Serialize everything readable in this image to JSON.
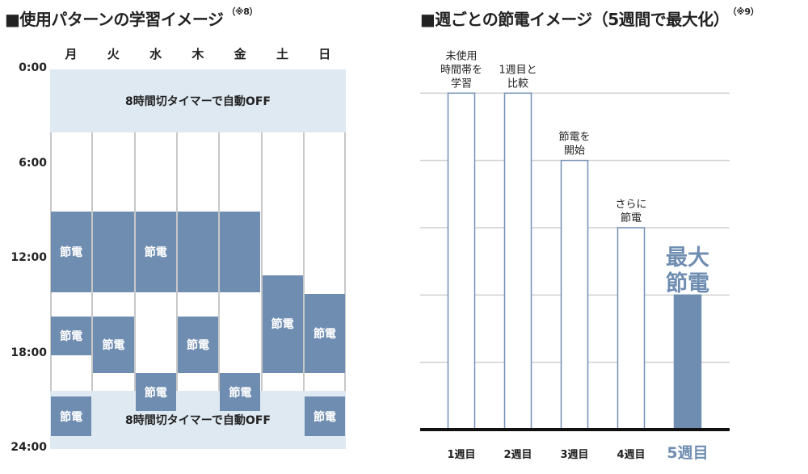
{
  "left": {
    "title": "使用パターンの学習イメージ",
    "note": "（※8）",
    "days": [
      "月",
      "火",
      "水",
      "木",
      "金",
      "土",
      "日"
    ],
    "times": [
      "0:00",
      "6:00",
      "12:00",
      "18:00",
      "24:00"
    ],
    "timer_band": "8時間切タイマーで自動OFF",
    "savings_block_label": "節電"
  },
  "right": {
    "title": "週ごとの節電イメージ（5週間で最大化）",
    "note": "（※9）",
    "highlight_label": "最大\n節電"
  },
  "colors": {
    "band": "#dfe9f2",
    "block": "#6f8db1",
    "bar_border": "#7390b6",
    "grid": "#cfcfcf",
    "highlight_text": "#6f8db1"
  },
  "chart_data": [
    {
      "type": "table",
      "description_axis": "hours by weekday",
      "categories": [
        "月",
        "火",
        "水",
        "木",
        "金",
        "土",
        "日"
      ],
      "y_ticks": [
        "0:00",
        "6:00",
        "12:00",
        "18:00",
        "24:00"
      ],
      "ylim": [
        0,
        24
      ],
      "timer_off_periods": [
        {
          "start": 0,
          "end": 4,
          "label": "8時間切タイマーで自動OFF"
        },
        {
          "start": 20.3,
          "end": 24,
          "label": "8時間切タイマーで自動OFF"
        }
      ],
      "savings_blocks": [
        {
          "day": "月",
          "start": 9.0,
          "end": 14.1,
          "label": "節電"
        },
        {
          "day": "月",
          "start": 15.6,
          "end": 18.1,
          "label": "節電"
        },
        {
          "day": "月",
          "start": 20.7,
          "end": 23.2,
          "label": "節電"
        },
        {
          "day": "火",
          "start": 9.0,
          "end": 14.1,
          "label": ""
        },
        {
          "day": "火",
          "start": 15.6,
          "end": 19.2,
          "label": "節電"
        },
        {
          "day": "水",
          "start": 9.0,
          "end": 14.1,
          "label": "節電"
        },
        {
          "day": "水",
          "start": 19.2,
          "end": 21.6,
          "label": "節電"
        },
        {
          "day": "木",
          "start": 9.0,
          "end": 14.1,
          "label": ""
        },
        {
          "day": "木",
          "start": 15.6,
          "end": 19.2,
          "label": "節電"
        },
        {
          "day": "金",
          "start": 9.0,
          "end": 14.1,
          "label": ""
        },
        {
          "day": "金",
          "start": 19.2,
          "end": 21.6,
          "label": "節電"
        },
        {
          "day": "土",
          "start": 13.0,
          "end": 19.2,
          "label": "節電"
        },
        {
          "day": "日",
          "start": 14.2,
          "end": 19.2,
          "label": "節電"
        },
        {
          "day": "日",
          "start": 20.7,
          "end": 23.2,
          "label": "節電"
        }
      ]
    },
    {
      "type": "bar",
      "categories": [
        "1週目",
        "2週目",
        "3週目",
        "4週目",
        "5週目"
      ],
      "values": [
        5,
        5,
        4,
        3,
        2
      ],
      "bar_labels": [
        "未使用\n時間帯を\n学習",
        "1週目と\n比較",
        "節電を\n開始",
        "さらに\n節電",
        ""
      ],
      "ylim": [
        0,
        6
      ],
      "grid": true
    }
  ]
}
